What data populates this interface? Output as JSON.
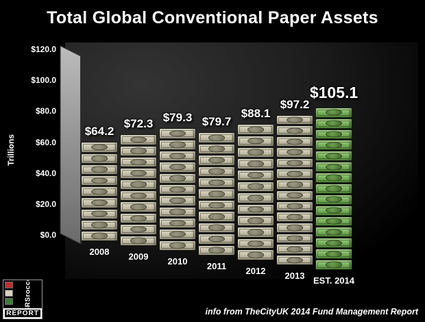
{
  "title": "Total Global Conventional Paper Assets",
  "footer_note": "info from TheCityUK 2014 Fund Management Report",
  "logo": {
    "vertical_text": "SRSrocco",
    "report_text": "REPORT"
  },
  "chart_data": {
    "type": "bar",
    "title": "Total Global Conventional Paper Assets",
    "ylabel": "Trillions",
    "ylim": [
      0,
      120
    ],
    "ytick_values": [
      120,
      100,
      80,
      60,
      40,
      20,
      0
    ],
    "yticks": [
      "$120.0",
      "$100.0",
      "$80.0",
      "$60.0",
      "$40.0",
      "$20.0",
      "$0.0"
    ],
    "categories": [
      "2008",
      "2009",
      "2010",
      "2011",
      "2012",
      "2013",
      "EST. 2014"
    ],
    "values": [
      64.2,
      72.3,
      79.3,
      79.7,
      88.1,
      97.2,
      105.1
    ],
    "value_labels": [
      "$64.2",
      "$72.3",
      "$79.3",
      "$79.7",
      "$88.1",
      "$97.2",
      "$105.1"
    ],
    "legend": [],
    "grid": false,
    "bar_style": "stacked-dollar-bills",
    "bar_colors": {
      "default": "#c9c5ae",
      "highlight": "#7cb660"
    },
    "highlight_index": 6,
    "highlight_note": "EST. 2014 bar shown in green"
  }
}
